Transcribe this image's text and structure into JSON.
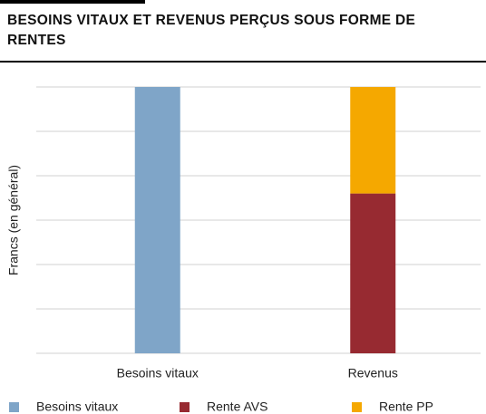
{
  "chart_data": {
    "type": "bar",
    "stacked": true,
    "title": "BESOINS VITAUX ET REVENUS PERÇUS SOUS FORME DE RENTES",
    "y_label": "Francs (en général)",
    "categories": [
      "Besoins vitaux",
      "Revenus"
    ],
    "series": [
      {
        "name": "Besoins vitaux",
        "color": "#7fa5c8",
        "values": [
          6,
          null
        ]
      },
      {
        "name": "Rente AVS",
        "color": "#972a31",
        "values": [
          null,
          3.6
        ]
      },
      {
        "name": "Rente PP",
        "color": "#f5a800",
        "values": [
          null,
          2.4
        ]
      }
    ],
    "ylim": [
      0,
      6
    ],
    "yticks": [
      0,
      1,
      2,
      3,
      4,
      5,
      6
    ],
    "grid": true,
    "legend": "bottom"
  }
}
